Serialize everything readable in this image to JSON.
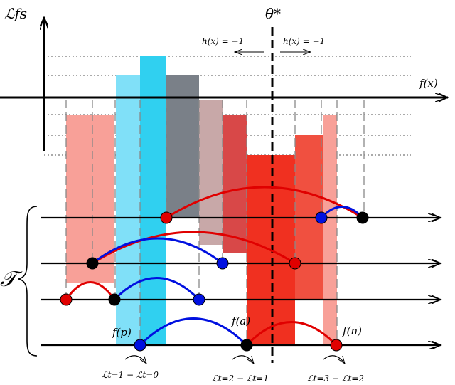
{
  "labels": {
    "y_axis": "ℒfs",
    "x_axis": "f(x)",
    "threshold": "θ*",
    "h_pos": "h(x) = +1",
    "h_neg": "h(x) = −1",
    "set_T": "𝒯",
    "f_p": "f(p)",
    "f_a": "f(a)",
    "f_n": "f(n)",
    "delta1": "ℒt=1 − ℒt=0",
    "delta2": "ℒt=2 − ℒt=1",
    "delta3": "ℒt=3 − ℒt=2"
  },
  "colors": {
    "negative_dark": "#f03020",
    "negative_light": "#f8a098",
    "positive_light": "#80e0f8",
    "positive_dark": "#30d0f0",
    "gray": "#7a8088",
    "red_dot": "#e00000",
    "blue_dot": "#0010e0",
    "black_dot": "#000000",
    "red_arc": "#e00000",
    "blue_arc": "#0010e0"
  }
}
